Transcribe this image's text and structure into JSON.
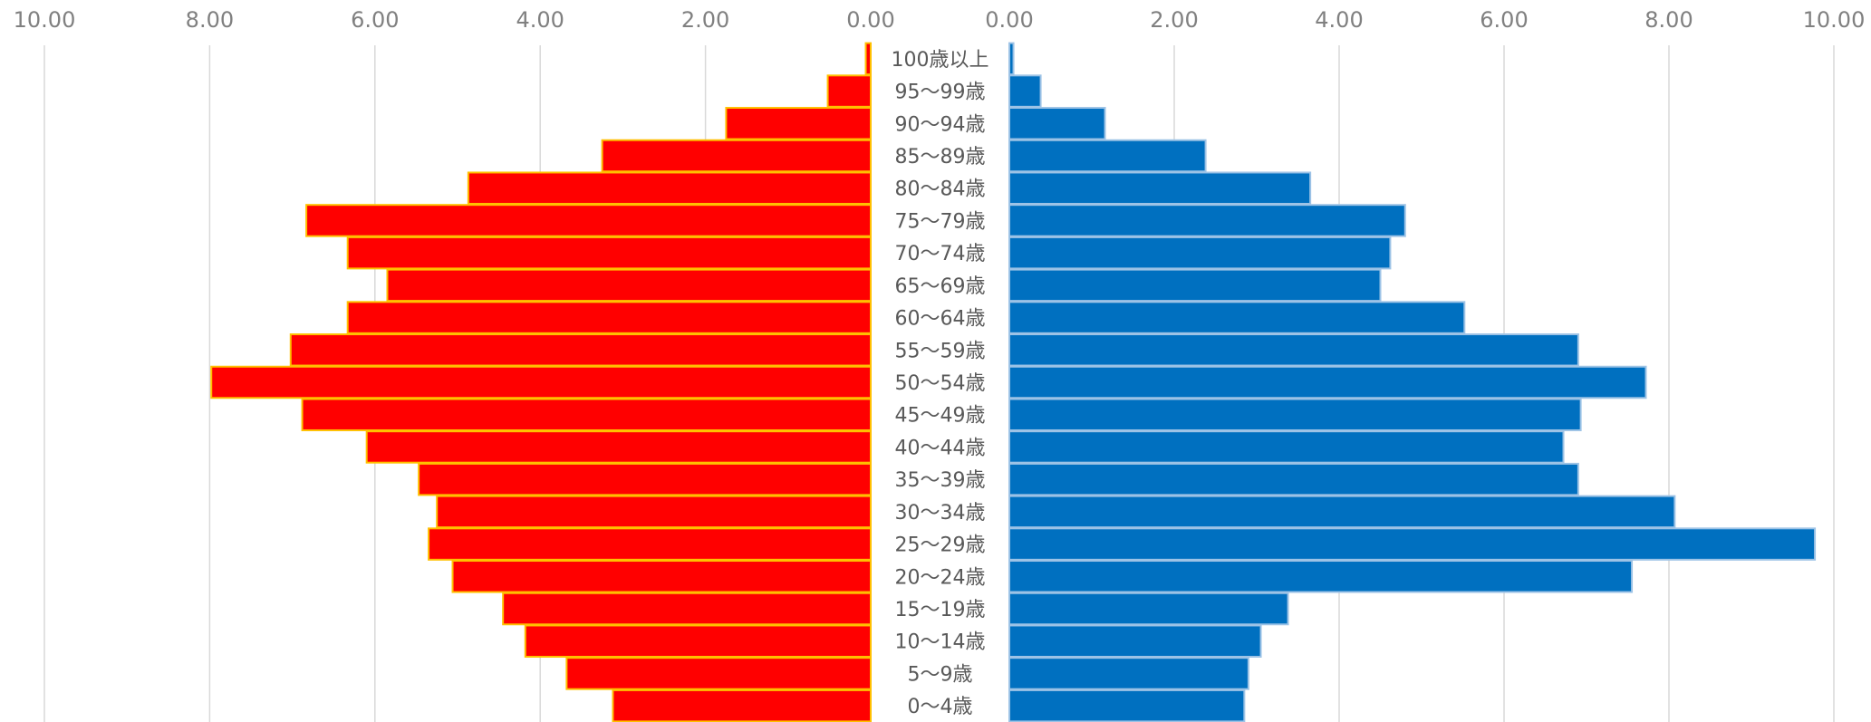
{
  "chart_data": {
    "type": "bar",
    "orientation": "horizontal",
    "layout": "population-pyramid",
    "title": "",
    "grid": true,
    "legend": "none",
    "categories": [
      "100歳以上",
      "95〜99歳",
      "90〜94歳",
      "85〜89歳",
      "80〜84歳",
      "75〜79歳",
      "70〜74歳",
      "65〜69歳",
      "60〜64歳",
      "55〜59歳",
      "50〜54歳",
      "45〜49歳",
      "40〜44歳",
      "35〜39歳",
      "30〜34歳",
      "25〜29歳",
      "20〜24歳",
      "15〜19歳",
      "10〜14歳",
      "5〜9歳",
      "0〜4歳"
    ],
    "left_axis": {
      "ticks": [
        "10.00",
        "8.00",
        "6.00",
        "4.00",
        "2.00",
        "0.00"
      ],
      "xlim": [
        10,
        0
      ]
    },
    "right_axis": {
      "ticks": [
        "0.00",
        "2.00",
        "4.00",
        "6.00",
        "8.00",
        "10.00"
      ],
      "xlim": [
        0,
        10
      ]
    },
    "series": [
      {
        "side": "left",
        "color": "#ff0000",
        "border_color": "#ffc000",
        "values": [
          0.06,
          0.52,
          1.75,
          3.25,
          4.87,
          6.83,
          6.33,
          5.85,
          6.33,
          7.02,
          7.98,
          6.88,
          6.1,
          5.47,
          5.25,
          5.35,
          5.06,
          4.45,
          4.18,
          3.68,
          3.12
        ]
      },
      {
        "side": "right",
        "color": "#0070c0",
        "border_color": "#9dc3e6",
        "values": [
          0.05,
          0.38,
          1.16,
          2.38,
          3.65,
          4.8,
          4.62,
          4.5,
          5.52,
          6.9,
          7.72,
          6.93,
          6.72,
          6.9,
          8.07,
          9.77,
          7.55,
          3.38,
          3.05,
          2.9,
          2.85
        ]
      }
    ]
  }
}
